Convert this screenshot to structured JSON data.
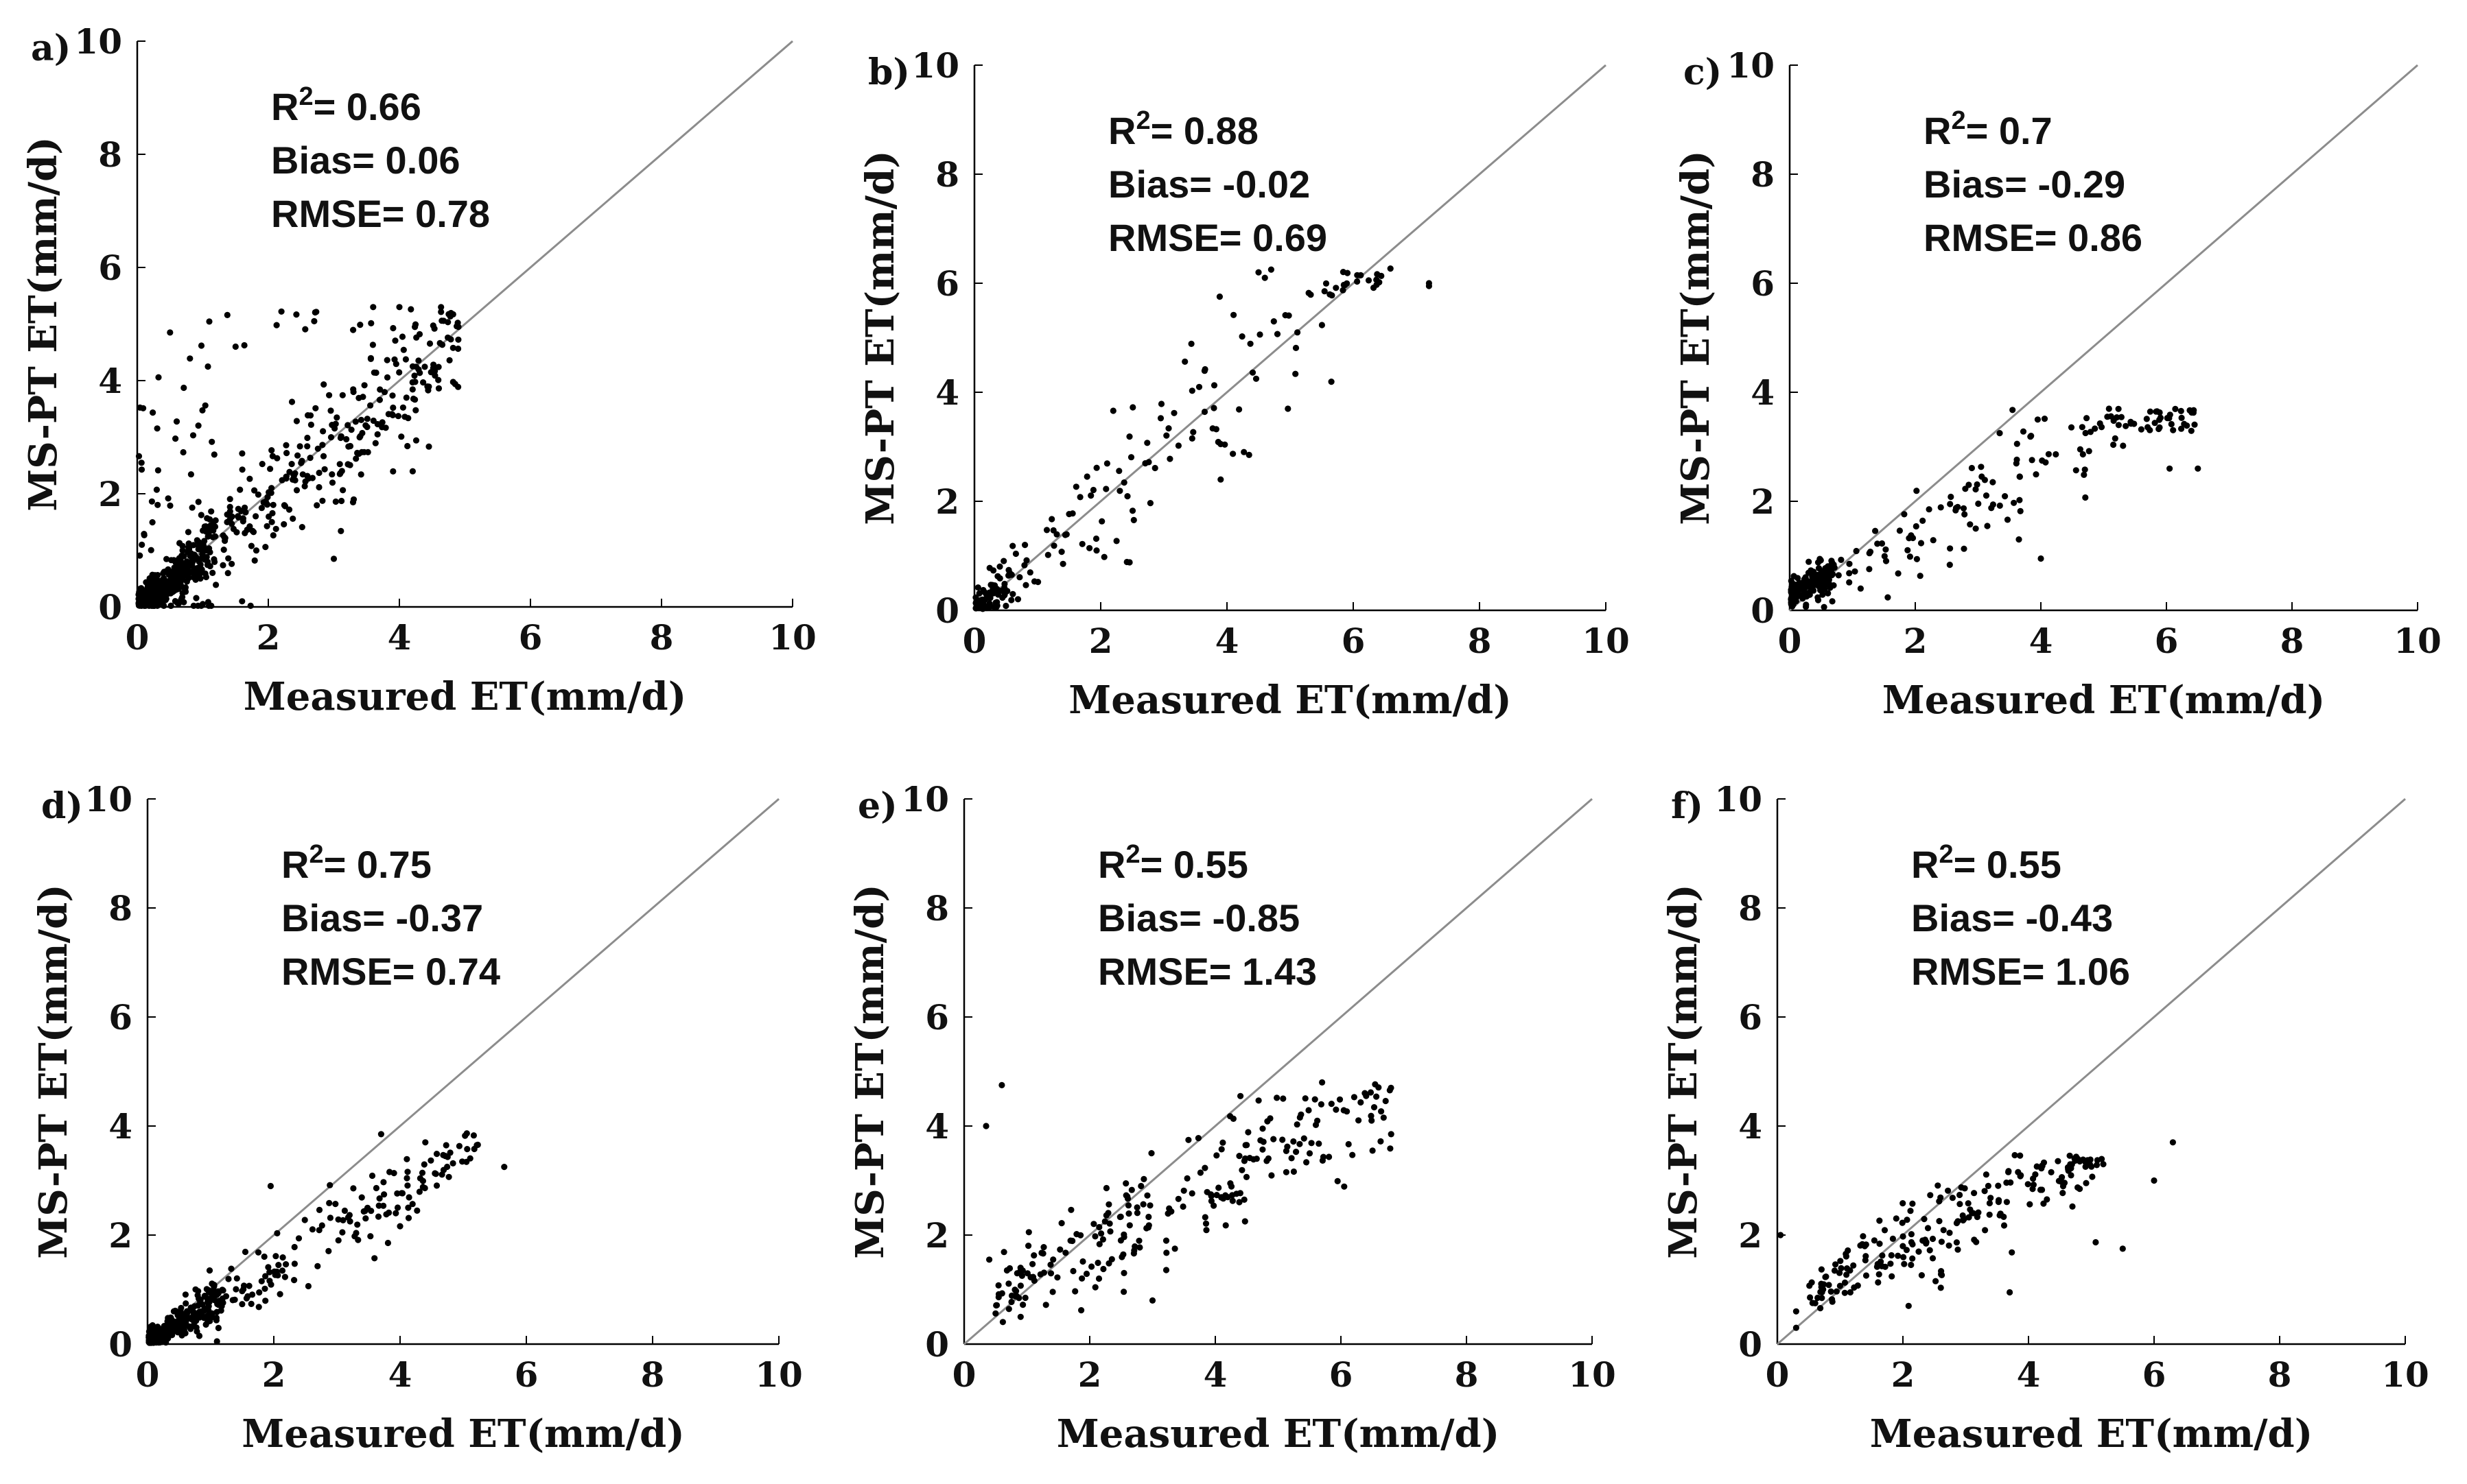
{
  "figure_title": "",
  "chart_data": [
    {
      "panel_label": "a)",
      "type": "scatter",
      "title": "",
      "xlabel": "Measured ET(mm/d)",
      "ylabel": "MS-PT ET(mm/d)",
      "xlim": [
        0,
        10
      ],
      "ylim": [
        0,
        10
      ],
      "xticks": [
        "0",
        "2",
        "4",
        "6",
        "8",
        "10"
      ],
      "yticks": [
        "0",
        "2",
        "4",
        "6",
        "8",
        "10"
      ],
      "reference_line": "1:1",
      "stats": {
        "r2_prefix": "R",
        "r2_exp": "2",
        "r2_value": "= 0.66",
        "bias": "Bias= 0.06",
        "rmse": "RMSE= 0.78"
      },
      "point_model": {
        "n": 720,
        "slope": 0.95,
        "offset": 0.0,
        "noise": 0.55,
        "outlier_frac": 0.12,
        "outlier_high_frac": 0.8,
        "cluster_frac": 0.45,
        "cluster_max": 1.2,
        "xmin": 0.02,
        "xmax": 4.9,
        "ymax": 5.3
      },
      "points_shown": [
        [
          0.5,
          4.85
        ],
        [
          1.5,
          4.6
        ],
        [
          2.7,
          5.05
        ],
        [
          3.6,
          5.3
        ],
        [
          4.0,
          5.3
        ],
        [
          4.9,
          4.95
        ],
        [
          3.0,
          0.85
        ],
        [
          1.0,
          0.05
        ],
        [
          1.6,
          0.1
        ]
      ]
    },
    {
      "panel_label": "b)",
      "type": "scatter",
      "title": "",
      "xlabel": "Measured ET(mm/d)",
      "ylabel": "MS-PT ET(mm/d)",
      "xlim": [
        0,
        10
      ],
      "ylim": [
        0,
        10
      ],
      "xticks": [
        "0",
        "2",
        "4",
        "6",
        "8",
        "10"
      ],
      "yticks": [
        "0",
        "2",
        "4",
        "6",
        "8",
        "10"
      ],
      "reference_line": "1:1",
      "stats": {
        "r2_prefix": "R",
        "r2_exp": "2",
        "r2_value": "= 0.88",
        "bias": "Bias= -0.02",
        "rmse": "RMSE= 0.69"
      },
      "point_model": {
        "n": 200,
        "slope": 1.0,
        "offset": 0.0,
        "noise": 0.7,
        "outlier_frac": 0.0,
        "outlier_high_frac": 0.5,
        "cluster_frac": 0.35,
        "cluster_max": 0.7,
        "xmin": 0.02,
        "xmax": 6.6,
        "ymax": 6.3
      },
      "points_shown": [
        [
          4.5,
          6.2
        ],
        [
          4.6,
          6.1
        ],
        [
          4.7,
          6.25
        ],
        [
          7.2,
          6.0
        ],
        [
          7.2,
          5.95
        ],
        [
          3.9,
          2.4
        ],
        [
          4.35,
          2.85
        ],
        [
          0.8,
          1.2
        ]
      ]
    },
    {
      "panel_label": "c)",
      "type": "scatter",
      "title": "",
      "xlabel": "Measured ET(mm/d)",
      "ylabel": "MS-PT ET(mm/d)",
      "xlim": [
        0,
        10
      ],
      "ylim": [
        0,
        10
      ],
      "xticks": [
        "0",
        "2",
        "4",
        "6",
        "8",
        "10"
      ],
      "yticks": [
        "0",
        "2",
        "4",
        "6",
        "8",
        "10"
      ],
      "reference_line": "1:1",
      "stats": {
        "r2_prefix": "R",
        "r2_exp": "2",
        "r2_value": "= 0.7",
        "bias": "Bias= -0.29",
        "rmse": "RMSE= 0.86"
      },
      "point_model": {
        "n": 330,
        "slope": 0.62,
        "offset": 0.25,
        "noise": 0.45,
        "outlier_frac": 0.0,
        "outlier_high_frac": 0.5,
        "cluster_frac": 0.5,
        "cluster_max": 0.7,
        "xmin": 0.02,
        "xmax": 6.5,
        "ymax": 3.7
      },
      "points_shown": [
        [
          5.85,
          3.65
        ],
        [
          6.5,
          2.6
        ],
        [
          6.05,
          2.6
        ],
        [
          3.95,
          3.5
        ],
        [
          4.0,
          0.95
        ],
        [
          3.65,
          1.3
        ]
      ]
    },
    {
      "panel_label": "d)",
      "type": "scatter",
      "title": "",
      "xlabel": "Measured ET(mm/d)",
      "ylabel": "MS-PT ET(mm/d)",
      "xlim": [
        0,
        10
      ],
      "ylim": [
        0,
        10
      ],
      "xticks": [
        "0",
        "2",
        "4",
        "6",
        "8",
        "10"
      ],
      "yticks": [
        "0",
        "2",
        "4",
        "6",
        "8",
        "10"
      ],
      "reference_line": "1:1",
      "stats": {
        "r2_prefix": "R",
        "r2_exp": "2",
        "r2_value": "= 0.75",
        "bias": "Bias= -0.37",
        "rmse": "RMSE= 0.74"
      },
      "point_model": {
        "n": 400,
        "slope": 0.68,
        "offset": 0.05,
        "noise": 0.4,
        "outlier_frac": 0.0,
        "outlier_high_frac": 0.5,
        "cluster_frac": 0.55,
        "cluster_max": 1.2,
        "xmin": 0.02,
        "xmax": 5.3,
        "ymax": 3.9
      },
      "points_shown": [
        [
          3.7,
          3.85
        ],
        [
          5.65,
          3.25
        ],
        [
          4.4,
          3.7
        ],
        [
          1.95,
          2.9
        ],
        [
          1.1,
          0.05
        ]
      ]
    },
    {
      "panel_label": "e)",
      "type": "scatter",
      "title": "",
      "xlabel": "Measured ET(mm/d)",
      "ylabel": "MS-PT ET(mm/d)",
      "xlim": [
        0,
        10
      ],
      "ylim": [
        0,
        10
      ],
      "xticks": [
        "0",
        "2",
        "4",
        "6",
        "8",
        "10"
      ],
      "yticks": [
        "0",
        "2",
        "4",
        "6",
        "8",
        "10"
      ],
      "reference_line": "1:1",
      "stats": {
        "r2_prefix": "R",
        "r2_exp": "2",
        "r2_value": "= 0.55",
        "bias": "Bias= -0.85",
        "rmse": "RMSE= 1.43"
      },
      "point_model": {
        "n": 240,
        "slope": 0.6,
        "offset": 0.6,
        "noise": 0.55,
        "outlier_frac": 0.0,
        "outlier_high_frac": 0.5,
        "cluster_frac": 0.0,
        "cluster_max": 1.0,
        "xmin": 0.5,
        "xmax": 6.8,
        "ymax": 4.8
      },
      "points_shown": [
        [
          0.6,
          4.75
        ],
        [
          0.35,
          4.0
        ],
        [
          5.7,
          4.8
        ],
        [
          4.4,
          4.55
        ],
        [
          6.8,
          3.85
        ],
        [
          0.9,
          0.5
        ],
        [
          3.0,
          0.8
        ],
        [
          0.4,
          1.55
        ]
      ]
    },
    {
      "panel_label": "f)",
      "type": "scatter",
      "title": "",
      "xlabel": "Measured ET(mm/d)",
      "ylabel": "MS-PT ET(mm/d)",
      "xlim": [
        0,
        10
      ],
      "ylim": [
        0,
        10
      ],
      "xticks": [
        "0",
        "2",
        "4",
        "6",
        "8",
        "10"
      ],
      "yticks": [
        "0",
        "2",
        "4",
        "6",
        "8",
        "10"
      ],
      "reference_line": "1:1",
      "stats": {
        "r2_prefix": "R",
        "r2_exp": "2",
        "r2_value": "= 0.55",
        "bias": "Bias= -0.43",
        "rmse": "RMSE= 1.06"
      },
      "point_model": {
        "n": 210,
        "slope": 0.55,
        "offset": 0.65,
        "noise": 0.45,
        "outlier_frac": 0.0,
        "outlier_high_frac": 0.5,
        "cluster_frac": 0.0,
        "cluster_max": 1.0,
        "xmin": 0.5,
        "xmax": 5.2,
        "ymax": 3.5
      },
      "points_shown": [
        [
          6.3,
          3.7
        ],
        [
          0.05,
          2.0
        ],
        [
          0.3,
          0.6
        ],
        [
          5.5,
          1.75
        ],
        [
          3.7,
          0.95
        ],
        [
          6.0,
          3.0
        ],
        [
          0.3,
          0.3
        ]
      ]
    }
  ]
}
